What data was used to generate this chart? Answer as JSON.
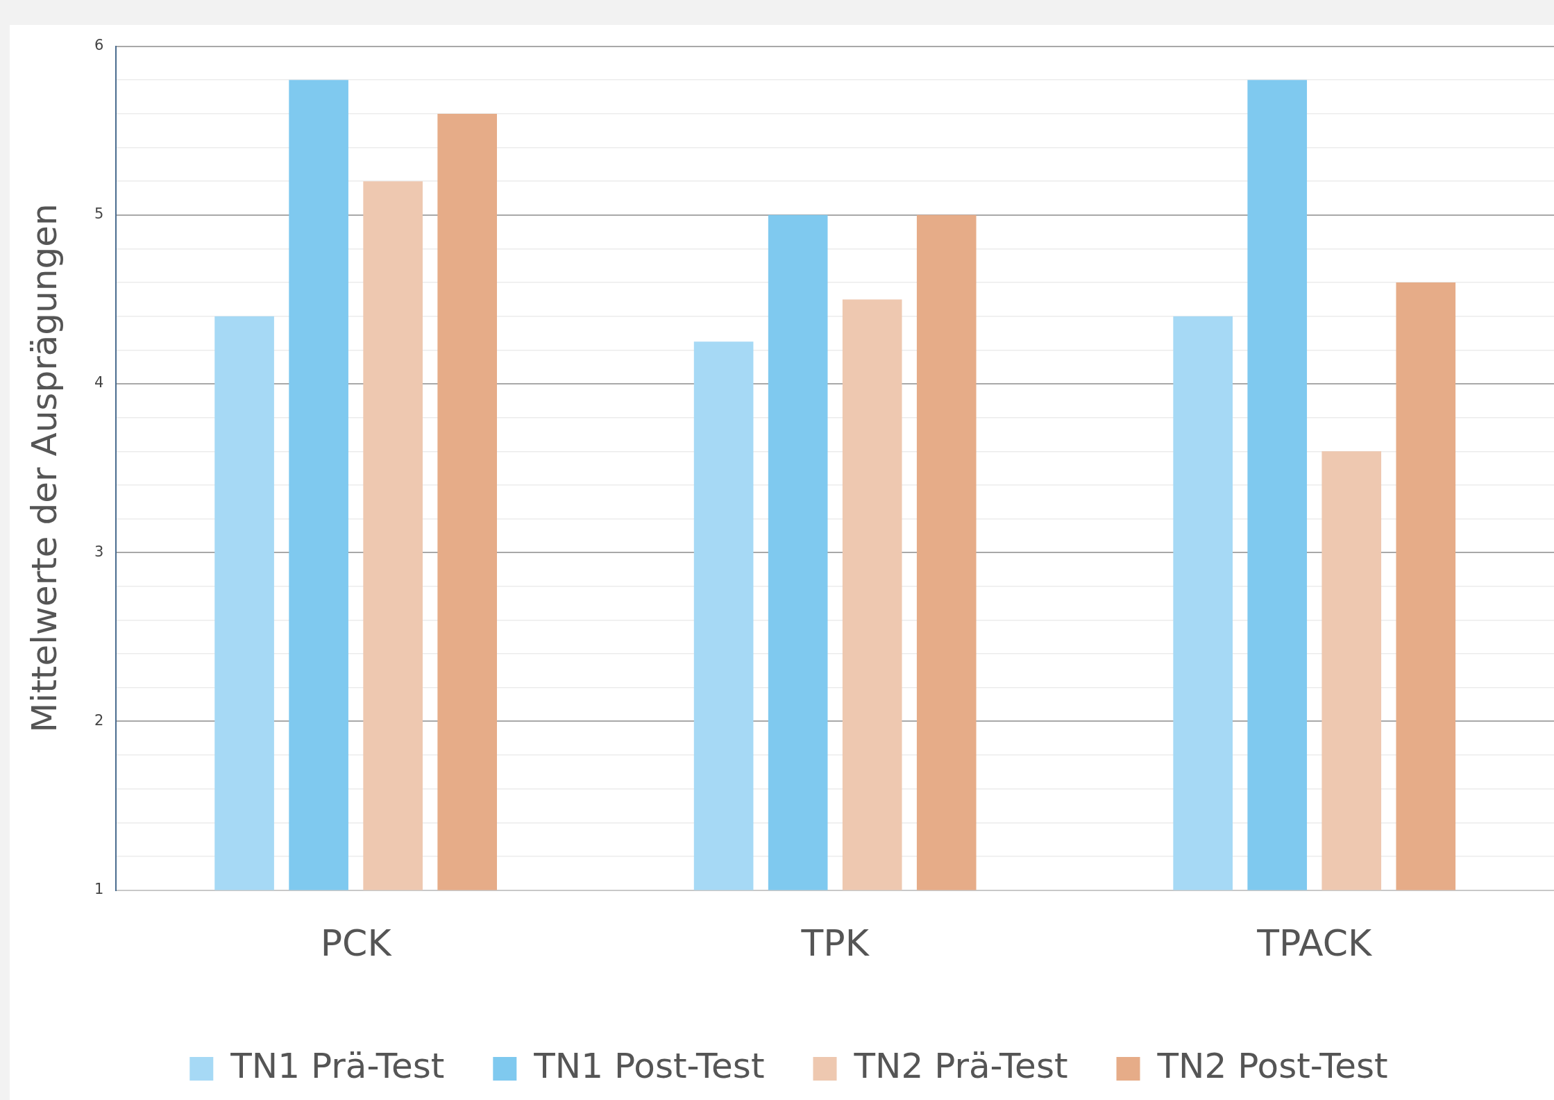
{
  "chart_data": {
    "type": "bar",
    "ylabel": "Mittelwerte der Ausprägungen",
    "categories": [
      "PCK",
      "TPK",
      "TPACK"
    ],
    "series": [
      {
        "name": "TN1 Prä-Test",
        "color": "#a6d9f5",
        "values": [
          4.4,
          4.25,
          4.4
        ]
      },
      {
        "name": "TN1 Post-Test",
        "color": "#7fc9ef",
        "values": [
          5.8,
          5.0,
          5.8
        ]
      },
      {
        "name": "TN2 Prä-Test",
        "color": "#eec8b0",
        "values": [
          5.2,
          4.5,
          3.6
        ]
      },
      {
        "name": "TN2 Post-Test",
        "color": "#e6ac88",
        "values": [
          5.6,
          5.0,
          4.6
        ]
      }
    ],
    "ylim": [
      1,
      6
    ],
    "yticks": [
      1,
      {
        "value": 1.2,
        "label": null
      },
      {
        "value": 1.4,
        "label": null
      },
      {
        "value": 1.6,
        "label": null
      },
      {
        "value": 1.8,
        "label": null
      },
      2,
      {
        "value": 2.2,
        "label": null
      },
      {
        "value": 2.4,
        "label": null
      },
      {
        "value": 2.6,
        "label": null
      },
      {
        "value": 2.8,
        "label": null
      },
      3,
      {
        "value": 3.2,
        "label": null
      },
      {
        "value": 3.4,
        "label": null
      },
      {
        "value": 3.6,
        "label": null
      },
      {
        "value": 3.8,
        "label": null
      },
      4,
      {
        "value": 4.2,
        "label": null
      },
      {
        "value": 4.4,
        "label": null
      },
      {
        "value": 4.6,
        "label": null
      },
      {
        "value": 4.8,
        "label": null
      },
      5,
      {
        "value": 5.2,
        "label": null
      },
      {
        "value": 5.4,
        "label": null
      },
      {
        "value": 5.6,
        "label": null
      },
      {
        "value": 5.8,
        "label": null
      },
      6
    ],
    "grid": "y",
    "legend": "bottom"
  }
}
